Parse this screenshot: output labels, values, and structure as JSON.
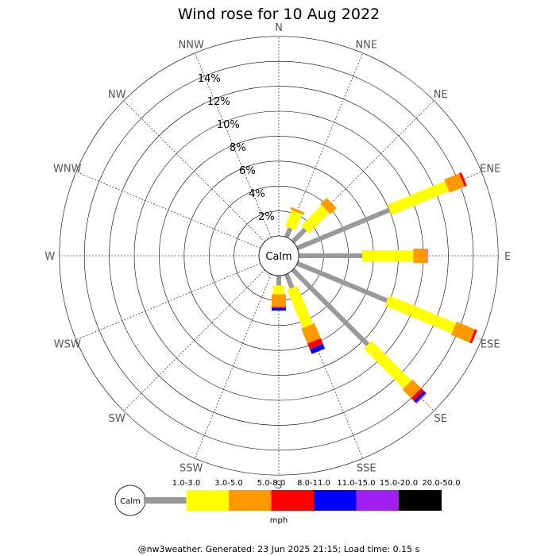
{
  "title": "Wind rose for 10 Aug 2022",
  "footer": "@nw3weather. Generated: 23 Jun 2025 21:15; Load time: 0.15 s",
  "calm_label": "Calm",
  "chart_data": {
    "type": "wind-rose",
    "title": "Wind rose for 10 Aug 2022",
    "directions": [
      "N",
      "NNE",
      "NE",
      "ENE",
      "E",
      "ESE",
      "SE",
      "SSE",
      "S",
      "SSW",
      "SW",
      "WSW",
      "W",
      "WNW",
      "NW",
      "NNW"
    ],
    "ring_labels": [
      "2%",
      "4%",
      "6%",
      "8%",
      "10%",
      "12%",
      "14%"
    ],
    "rlim": [
      0,
      16
    ],
    "grid": true,
    "speed_unit": "mph",
    "speed_bins": [
      {
        "name": "1.0-3.0",
        "color": "#999999"
      },
      {
        "name": "3.0-5.0",
        "color": "#ffff00"
      },
      {
        "name": "5.0-8.0",
        "color": "#ff9900"
      },
      {
        "name": "8.0-11.0",
        "color": "#ff0000"
      },
      {
        "name": "11.0-15.0",
        "color": "#0000ff"
      },
      {
        "name": "15.0-20.0",
        "color": "#a020f0"
      },
      {
        "name": "20.0-50.0",
        "color": "#000000"
      }
    ],
    "series_cumulative_percent": {
      "N": [
        0,
        0,
        0,
        0,
        0,
        0,
        0
      ],
      "NNE": [
        0.8,
        2.2,
        2.4,
        2.4,
        2.4,
        2.4,
        2.4
      ],
      "NE": [
        1.4,
        3.7,
        4.4,
        4.4,
        4.4,
        4.4,
        4.4
      ],
      "ENE": [
        8.0,
        13.0,
        14.3,
        14.5,
        14.5,
        14.5,
        14.5
      ],
      "E": [
        5.1,
        9.2,
        10.3,
        10.3,
        10.3,
        10.35,
        10.35
      ],
      "ESE": [
        7.8,
        13.6,
        15.2,
        15.4,
        15.4,
        15.4,
        15.4
      ],
      "SE": [
        8.5,
        13.0,
        14.0,
        14.3,
        14.5,
        14.6,
        14.6
      ],
      "SSE": [
        1.2,
        4.5,
        5.8,
        6.3,
        6.7,
        6.7,
        6.7
      ],
      "S": [
        0.8,
        1.5,
        2.5,
        2.6,
        2.8,
        2.8,
        2.8
      ],
      "SSW": [
        0,
        0,
        0,
        0,
        0,
        0,
        0
      ],
      "SW": [
        0,
        0,
        0,
        0,
        0,
        0,
        0
      ],
      "WSW": [
        0,
        0,
        0,
        0,
        0,
        0,
        0
      ],
      "W": [
        0,
        0,
        0,
        0,
        0,
        0,
        0
      ],
      "WNW": [
        0,
        0,
        0,
        0,
        0,
        0,
        0
      ],
      "NW": [
        0,
        0,
        0,
        0,
        0,
        0,
        0
      ],
      "NNW": [
        0,
        0,
        0,
        0,
        0,
        0,
        0
      ]
    }
  }
}
